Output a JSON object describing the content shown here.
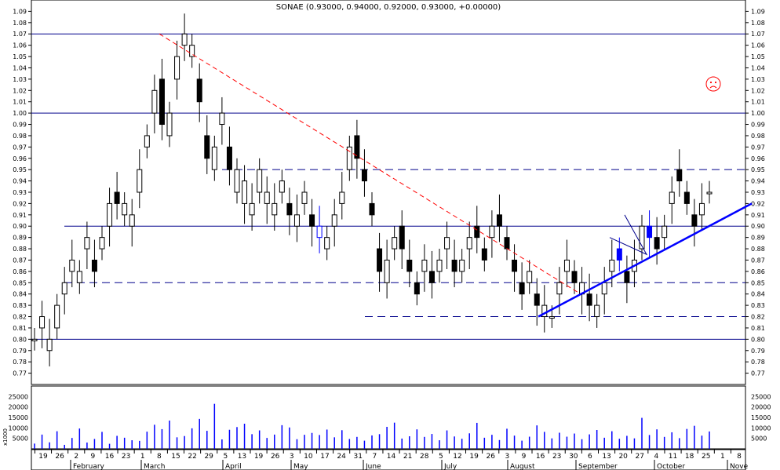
{
  "chart_data": {
    "type": "candlestick",
    "title": "SONAE (0.93000, 0.94000, 0.92000, 0.93000, +0.00000)",
    "ylim": [
      0.76,
      1.1
    ],
    "yticks": [
      "0.77",
      "0.78",
      "0.79",
      "0.80",
      "0.81",
      "0.82",
      "0.83",
      "0.84",
      "0.85",
      "0.86",
      "0.87",
      "0.88",
      "0.89",
      "0.90",
      "0.91",
      "0.92",
      "0.93",
      "0.94",
      "0.95",
      "0.96",
      "0.97",
      "0.98",
      "0.99",
      "1.00",
      "1.01",
      "1.02",
      "1.03",
      "1.04",
      "1.05",
      "1.06",
      "1.07",
      "1.08",
      "1.09"
    ],
    "x_day_labels": [
      "19",
      "26",
      "2",
      "9",
      "16",
      "23",
      "1",
      "8",
      "15",
      "22",
      "29",
      "5",
      "13",
      "19",
      "26",
      "3",
      "10",
      "17",
      "24",
      "31",
      "7",
      "14",
      "21",
      "28",
      "5",
      "12",
      "19",
      "26",
      "3",
      "9",
      "16",
      "23",
      "30",
      "6",
      "13",
      "20",
      "27",
      "4",
      "11",
      "18",
      "25",
      "1",
      "8"
    ],
    "x_month_labels": [
      "February",
      "March",
      "April",
      "May",
      "June",
      "July",
      "August",
      "September",
      "October",
      "Nove"
    ],
    "horizontal_lines_solid": [
      1.07,
      1.0,
      0.9,
      0.8
    ],
    "horizontal_lines_dashed": [
      0.95,
      0.85,
      0.82
    ],
    "price_path": [
      [
        0.8,
        0.8
      ],
      [
        0.81,
        0.82
      ],
      [
        0.79,
        0.8
      ],
      [
        0.81,
        0.83
      ],
      [
        0.84,
        0.85
      ],
      [
        0.86,
        0.87
      ],
      [
        0.85,
        0.86
      ],
      [
        0.88,
        0.89
      ],
      [
        0.87,
        0.86
      ],
      [
        0.88,
        0.89
      ],
      [
        0.9,
        0.92
      ],
      [
        0.93,
        0.92
      ],
      [
        0.91,
        0.92
      ],
      [
        0.9,
        0.91
      ],
      [
        0.93,
        0.95
      ],
      [
        0.97,
        0.98
      ],
      [
        1.0,
        1.02
      ],
      [
        1.03,
        0.99
      ],
      [
        0.98,
        1.0
      ],
      [
        1.03,
        1.05
      ],
      [
        1.06,
        1.07
      ],
      [
        1.05,
        1.06
      ],
      [
        1.03,
        1.01
      ],
      [
        0.98,
        0.96
      ],
      [
        0.95,
        0.97
      ],
      [
        0.99,
        1.0
      ],
      [
        0.97,
        0.95
      ],
      [
        0.93,
        0.95
      ],
      [
        0.92,
        0.94
      ],
      [
        0.91,
        0.92
      ],
      [
        0.93,
        0.95
      ],
      [
        0.92,
        0.93
      ],
      [
        0.91,
        0.92
      ],
      [
        0.93,
        0.94
      ],
      [
        0.92,
        0.91
      ],
      [
        0.9,
        0.91
      ],
      [
        0.92,
        0.93
      ],
      [
        0.91,
        0.9
      ],
      [
        0.89,
        0.9
      ],
      [
        0.88,
        0.89
      ],
      [
        0.9,
        0.91
      ],
      [
        0.92,
        0.93
      ],
      [
        0.95,
        0.97
      ],
      [
        0.98,
        0.96
      ],
      [
        0.95,
        0.94
      ],
      [
        0.92,
        0.91
      ],
      [
        0.88,
        0.86
      ],
      [
        0.85,
        0.87
      ],
      [
        0.88,
        0.89
      ],
      [
        0.9,
        0.88
      ],
      [
        0.87,
        0.86
      ],
      [
        0.85,
        0.84
      ],
      [
        0.86,
        0.87
      ],
      [
        0.86,
        0.85
      ],
      [
        0.86,
        0.87
      ],
      [
        0.88,
        0.89
      ],
      [
        0.87,
        0.86
      ],
      [
        0.86,
        0.87
      ],
      [
        0.88,
        0.89
      ],
      [
        0.9,
        0.89
      ],
      [
        0.88,
        0.87
      ],
      [
        0.89,
        0.9
      ],
      [
        0.91,
        0.9
      ],
      [
        0.89,
        0.88
      ],
      [
        0.87,
        0.86
      ],
      [
        0.85,
        0.84
      ],
      [
        0.85,
        0.86
      ],
      [
        0.84,
        0.83
      ],
      [
        0.82,
        0.83
      ],
      [
        0.82,
        0.82
      ],
      [
        0.84,
        0.85
      ],
      [
        0.86,
        0.87
      ],
      [
        0.86,
        0.85
      ],
      [
        0.84,
        0.85
      ],
      [
        0.84,
        0.83
      ],
      [
        0.82,
        0.83
      ],
      [
        0.84,
        0.85
      ],
      [
        0.86,
        0.87
      ],
      [
        0.88,
        0.87
      ],
      [
        0.86,
        0.85
      ],
      [
        0.86,
        0.87
      ],
      [
        0.88,
        0.9
      ],
      [
        0.9,
        0.89
      ],
      [
        0.89,
        0.88
      ],
      [
        0.89,
        0.9
      ],
      [
        0.92,
        0.93
      ],
      [
        0.95,
        0.94
      ],
      [
        0.93,
        0.92
      ],
      [
        0.91,
        0.9
      ],
      [
        0.91,
        0.92
      ],
      [
        0.93,
        0.93
      ]
    ],
    "volume": {
      "ylim": [
        0,
        30000
      ],
      "yticks": [
        "25000",
        "20000",
        "15000",
        "10000",
        "5000"
      ],
      "unit_label": "x1000",
      "values": [
        2500,
        6800,
        3100,
        8400,
        1900,
        5200,
        9700,
        3000,
        4700,
        8100,
        2400,
        6200,
        5300,
        4100,
        3800,
        8200,
        11500,
        9400,
        13500,
        5500,
        6100,
        9800,
        14300,
        8600,
        21500,
        4500,
        9100,
        10400,
        12000,
        7000,
        8800,
        5200,
        6800,
        11300,
        10200,
        4600,
        6700,
        7600,
        6600,
        9200,
        5500,
        8900,
        4700,
        5700,
        3900,
        6400,
        7000,
        10500,
        12500,
        4900,
        6000,
        9300,
        5700,
        7100,
        4100,
        8800,
        5900,
        4800,
        7400,
        12400,
        5300,
        6700,
        4200,
        9600,
        6300,
        3900,
        5800,
        11200,
        8100,
        5000,
        7700,
        5800,
        7300,
        4600,
        6900,
        9000,
        5300,
        8400,
        4800,
        6200,
        5000,
        14800,
        6600,
        9300,
        5700,
        7900,
        5100,
        9500,
        11000,
        6300,
        8300
      ]
    }
  },
  "signal_icon": "frowning-face-icon",
  "colors": {
    "frame": "#000000",
    "candle": "#000000",
    "highlight_candle": "#0000ff",
    "level_line": "#00008b",
    "trend_red": "#ff0000",
    "trend_blue": "#0000ff",
    "face": "#ff0000",
    "volume_bar": "#0000ff"
  }
}
